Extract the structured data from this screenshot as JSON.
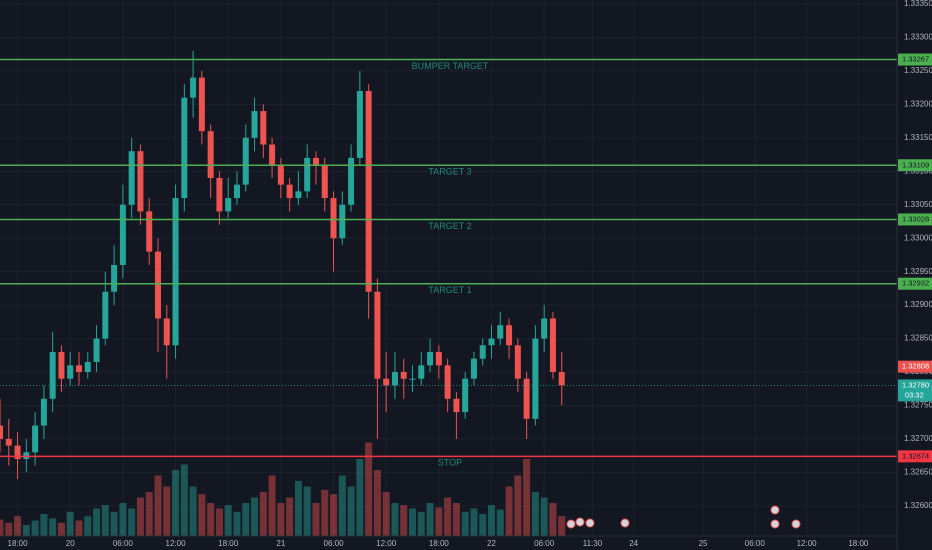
{
  "chart_data": {
    "type": "candlestick",
    "x": [
      -2,
      -1,
      0,
      1,
      2,
      3,
      4,
      5,
      6,
      7,
      8,
      9,
      10,
      11,
      12,
      13,
      14,
      15,
      16,
      17,
      18,
      19,
      20,
      21,
      22,
      23,
      24,
      25,
      26,
      27,
      28,
      29,
      30,
      31,
      32,
      33,
      34,
      35,
      36,
      37,
      38,
      39,
      40,
      41,
      42,
      43,
      44,
      45,
      46,
      47,
      48,
      49,
      50,
      51,
      52,
      53,
      54,
      55,
      56,
      57,
      58,
      59,
      60,
      61,
      62
    ],
    "candles": [
      [
        1.3272,
        1.3276,
        1.3268,
        1.327
      ],
      [
        1.327,
        1.3273,
        1.3266,
        1.3269
      ],
      [
        1.3269,
        1.3271,
        1.3264,
        1.3267
      ],
      [
        1.3267,
        1.327,
        1.3265,
        1.3268
      ],
      [
        1.3268,
        1.3274,
        1.3266,
        1.3272
      ],
      [
        1.3272,
        1.3278,
        1.327,
        1.3276
      ],
      [
        1.3276,
        1.3286,
        1.3274,
        1.3283
      ],
      [
        1.3283,
        1.3284,
        1.3277,
        1.3279
      ],
      [
        1.3279,
        1.3283,
        1.3278,
        1.3281
      ],
      [
        1.3281,
        1.3283,
        1.3278,
        1.328
      ],
      [
        1.328,
        1.3283,
        1.3279,
        1.32815
      ],
      [
        1.32815,
        1.3287,
        1.328,
        1.3285
      ],
      [
        1.3285,
        1.3295,
        1.3284,
        1.3292
      ],
      [
        1.3292,
        1.3299,
        1.329,
        1.3296
      ],
      [
        1.3296,
        1.3308,
        1.3294,
        1.3305
      ],
      [
        1.3305,
        1.3315,
        1.3303,
        1.3313
      ],
      [
        1.3313,
        1.3314,
        1.3302,
        1.3304
      ],
      [
        1.3304,
        1.3306,
        1.3296,
        1.3298
      ],
      [
        1.3298,
        1.33,
        1.3283,
        1.3288
      ],
      [
        1.3288,
        1.329,
        1.3279,
        1.3284
      ],
      [
        1.3284,
        1.3308,
        1.3282,
        1.3306
      ],
      [
        1.3306,
        1.3323,
        1.3304,
        1.3321
      ],
      [
        1.3321,
        1.3328,
        1.3318,
        1.3324
      ],
      [
        1.3324,
        1.3325,
        1.3314,
        1.3316
      ],
      [
        1.3316,
        1.3317,
        1.3306,
        1.3309
      ],
      [
        1.3309,
        1.331,
        1.3302,
        1.3304
      ],
      [
        1.3304,
        1.3309,
        1.3303,
        1.3306
      ],
      [
        1.3306,
        1.331,
        1.3305,
        1.3308
      ],
      [
        1.3308,
        1.3317,
        1.3307,
        1.3315
      ],
      [
        1.3315,
        1.3321,
        1.3313,
        1.3319
      ],
      [
        1.3319,
        1.332,
        1.3312,
        1.3314
      ],
      [
        1.3314,
        1.3315,
        1.3309,
        1.3311
      ],
      [
        1.3311,
        1.3312,
        1.3306,
        1.3308
      ],
      [
        1.3308,
        1.3309,
        1.3304,
        1.3306
      ],
      [
        1.3306,
        1.331,
        1.3305,
        1.3307
      ],
      [
        1.3307,
        1.3314,
        1.3306,
        1.3312
      ],
      [
        1.3312,
        1.3313,
        1.3308,
        1.3311
      ],
      [
        1.3311,
        1.3312,
        1.3304,
        1.3306
      ],
      [
        1.3306,
        1.3307,
        1.3295,
        1.33
      ],
      [
        1.33,
        1.3307,
        1.3299,
        1.3305
      ],
      [
        1.3305,
        1.3314,
        1.3304,
        1.3312
      ],
      [
        1.3312,
        1.3325,
        1.3311,
        1.3322
      ],
      [
        1.3322,
        1.3323,
        1.3288,
        1.3292
      ],
      [
        1.3292,
        1.3294,
        1.327,
        1.3279
      ],
      [
        1.3279,
        1.3283,
        1.3274,
        1.3278
      ],
      [
        1.3278,
        1.3283,
        1.3276,
        1.328
      ],
      [
        1.328,
        1.3282,
        1.3276,
        1.3279
      ],
      [
        1.3279,
        1.3281,
        1.3277,
        1.3279
      ],
      [
        1.3279,
        1.3283,
        1.3278,
        1.3281
      ],
      [
        1.3281,
        1.3285,
        1.328,
        1.3283
      ],
      [
        1.3283,
        1.3284,
        1.3279,
        1.3281
      ],
      [
        1.3281,
        1.3282,
        1.3274,
        1.3276
      ],
      [
        1.3276,
        1.3277,
        1.327,
        1.3274
      ],
      [
        1.3274,
        1.328,
        1.3273,
        1.3279
      ],
      [
        1.3279,
        1.3283,
        1.3278,
        1.3282
      ],
      [
        1.3282,
        1.3285,
        1.3281,
        1.3284
      ],
      [
        1.3284,
        1.3287,
        1.3282,
        1.3285
      ],
      [
        1.3285,
        1.3289,
        1.3284,
        1.3287
      ],
      [
        1.3287,
        1.3288,
        1.3282,
        1.3284
      ],
      [
        1.3284,
        1.3285,
        1.3277,
        1.3279
      ],
      [
        1.3279,
        1.328,
        1.327,
        1.3273
      ],
      [
        1.3273,
        1.3287,
        1.3272,
        1.3285
      ],
      [
        1.3285,
        1.329,
        1.3283,
        1.3288
      ],
      [
        1.3288,
        1.3289,
        1.3279,
        1.328
      ],
      [
        1.328,
        1.3283,
        1.3275,
        1.3278
      ]
    ],
    "volume": [
      15,
      12,
      18,
      10,
      14,
      20,
      16,
      12,
      22,
      14,
      18,
      25,
      28,
      22,
      30,
      25,
      35,
      40,
      55,
      45,
      60,
      65,
      45,
      38,
      30,
      25,
      28,
      22,
      30,
      35,
      40,
      55,
      30,
      35,
      50,
      45,
      30,
      42,
      38,
      55,
      45,
      70,
      85,
      60,
      40,
      30,
      28,
      25,
      22,
      30,
      26,
      35,
      30,
      22,
      25,
      20,
      28,
      24,
      45,
      55,
      70,
      40,
      35,
      30,
      18
    ],
    "volume_lim": [
      0,
      100
    ],
    "up_color": "#26a69a",
    "down_color": "#ef5350",
    "xlim": [
      -2,
      100.2
    ],
    "ylim": [
      1.32534,
      1.33356
    ],
    "grid": true,
    "xticks": [
      {
        "value": 0,
        "label": "18:00"
      },
      {
        "value": 6,
        "label": "20"
      },
      {
        "value": 12,
        "label": "06:00"
      },
      {
        "value": 18,
        "label": "12:00"
      },
      {
        "value": 24,
        "label": "18:00"
      },
      {
        "value": 30,
        "label": "21"
      },
      {
        "value": 36,
        "label": "06:00"
      },
      {
        "value": 42,
        "label": "12:00"
      },
      {
        "value": 48,
        "label": "18:00"
      },
      {
        "value": 54,
        "label": "22"
      },
      {
        "value": 60,
        "label": "06:00"
      },
      {
        "value": 65.5,
        "label": "11:30"
      },
      {
        "value": 70.2,
        "label": "24"
      },
      {
        "value": 78.1,
        "label": "25"
      },
      {
        "value": 84,
        "label": "06:00"
      },
      {
        "value": 89.9,
        "label": "12:00"
      },
      {
        "value": 95.8,
        "label": "18:00"
      }
    ],
    "yticks": [
      {
        "value": 1.326,
        "label": "1.32600"
      },
      {
        "value": 1.3265,
        "label": "1.32650"
      },
      {
        "value": 1.327,
        "label": "1.32700"
      },
      {
        "value": 1.3275,
        "label": "1.32750"
      },
      {
        "value": 1.328,
        "label": "1.32800"
      },
      {
        "value": 1.3285,
        "label": "1.32850"
      },
      {
        "value": 1.329,
        "label": "1.32900"
      },
      {
        "value": 1.3295,
        "label": "1.32950"
      },
      {
        "value": 1.33,
        "label": "1.33000"
      },
      {
        "value": 1.3305,
        "label": "1.33050"
      },
      {
        "value": 1.331,
        "label": "1.33100"
      },
      {
        "value": 1.3315,
        "label": "1.33150"
      },
      {
        "value": 1.332,
        "label": "1.33200"
      },
      {
        "value": 1.3325,
        "label": "1.33250"
      },
      {
        "value": 1.333,
        "label": "1.33300"
      },
      {
        "value": 1.3335,
        "label": "1.33350"
      }
    ],
    "levels": [
      {
        "label": "BUMPER TARGET",
        "value": 1.33267,
        "color": "#4caf50"
      },
      {
        "label": "TARGET 3",
        "value": 1.33109,
        "color": "#4caf50"
      },
      {
        "label": "TARGET 2",
        "value": 1.33028,
        "color": "#4caf50"
      },
      {
        "label": "TARGET 1",
        "value": 1.32932,
        "color": "#4caf50"
      },
      {
        "label": "STOP",
        "value": 1.32674,
        "color": "#f23645"
      }
    ],
    "marker_price": {
      "value": 1.32808,
      "color": "#ef5350"
    },
    "last_price": {
      "value": 1.3278,
      "label": "1.32780",
      "color": "#26a69a",
      "countdown": "03:32"
    }
  }
}
